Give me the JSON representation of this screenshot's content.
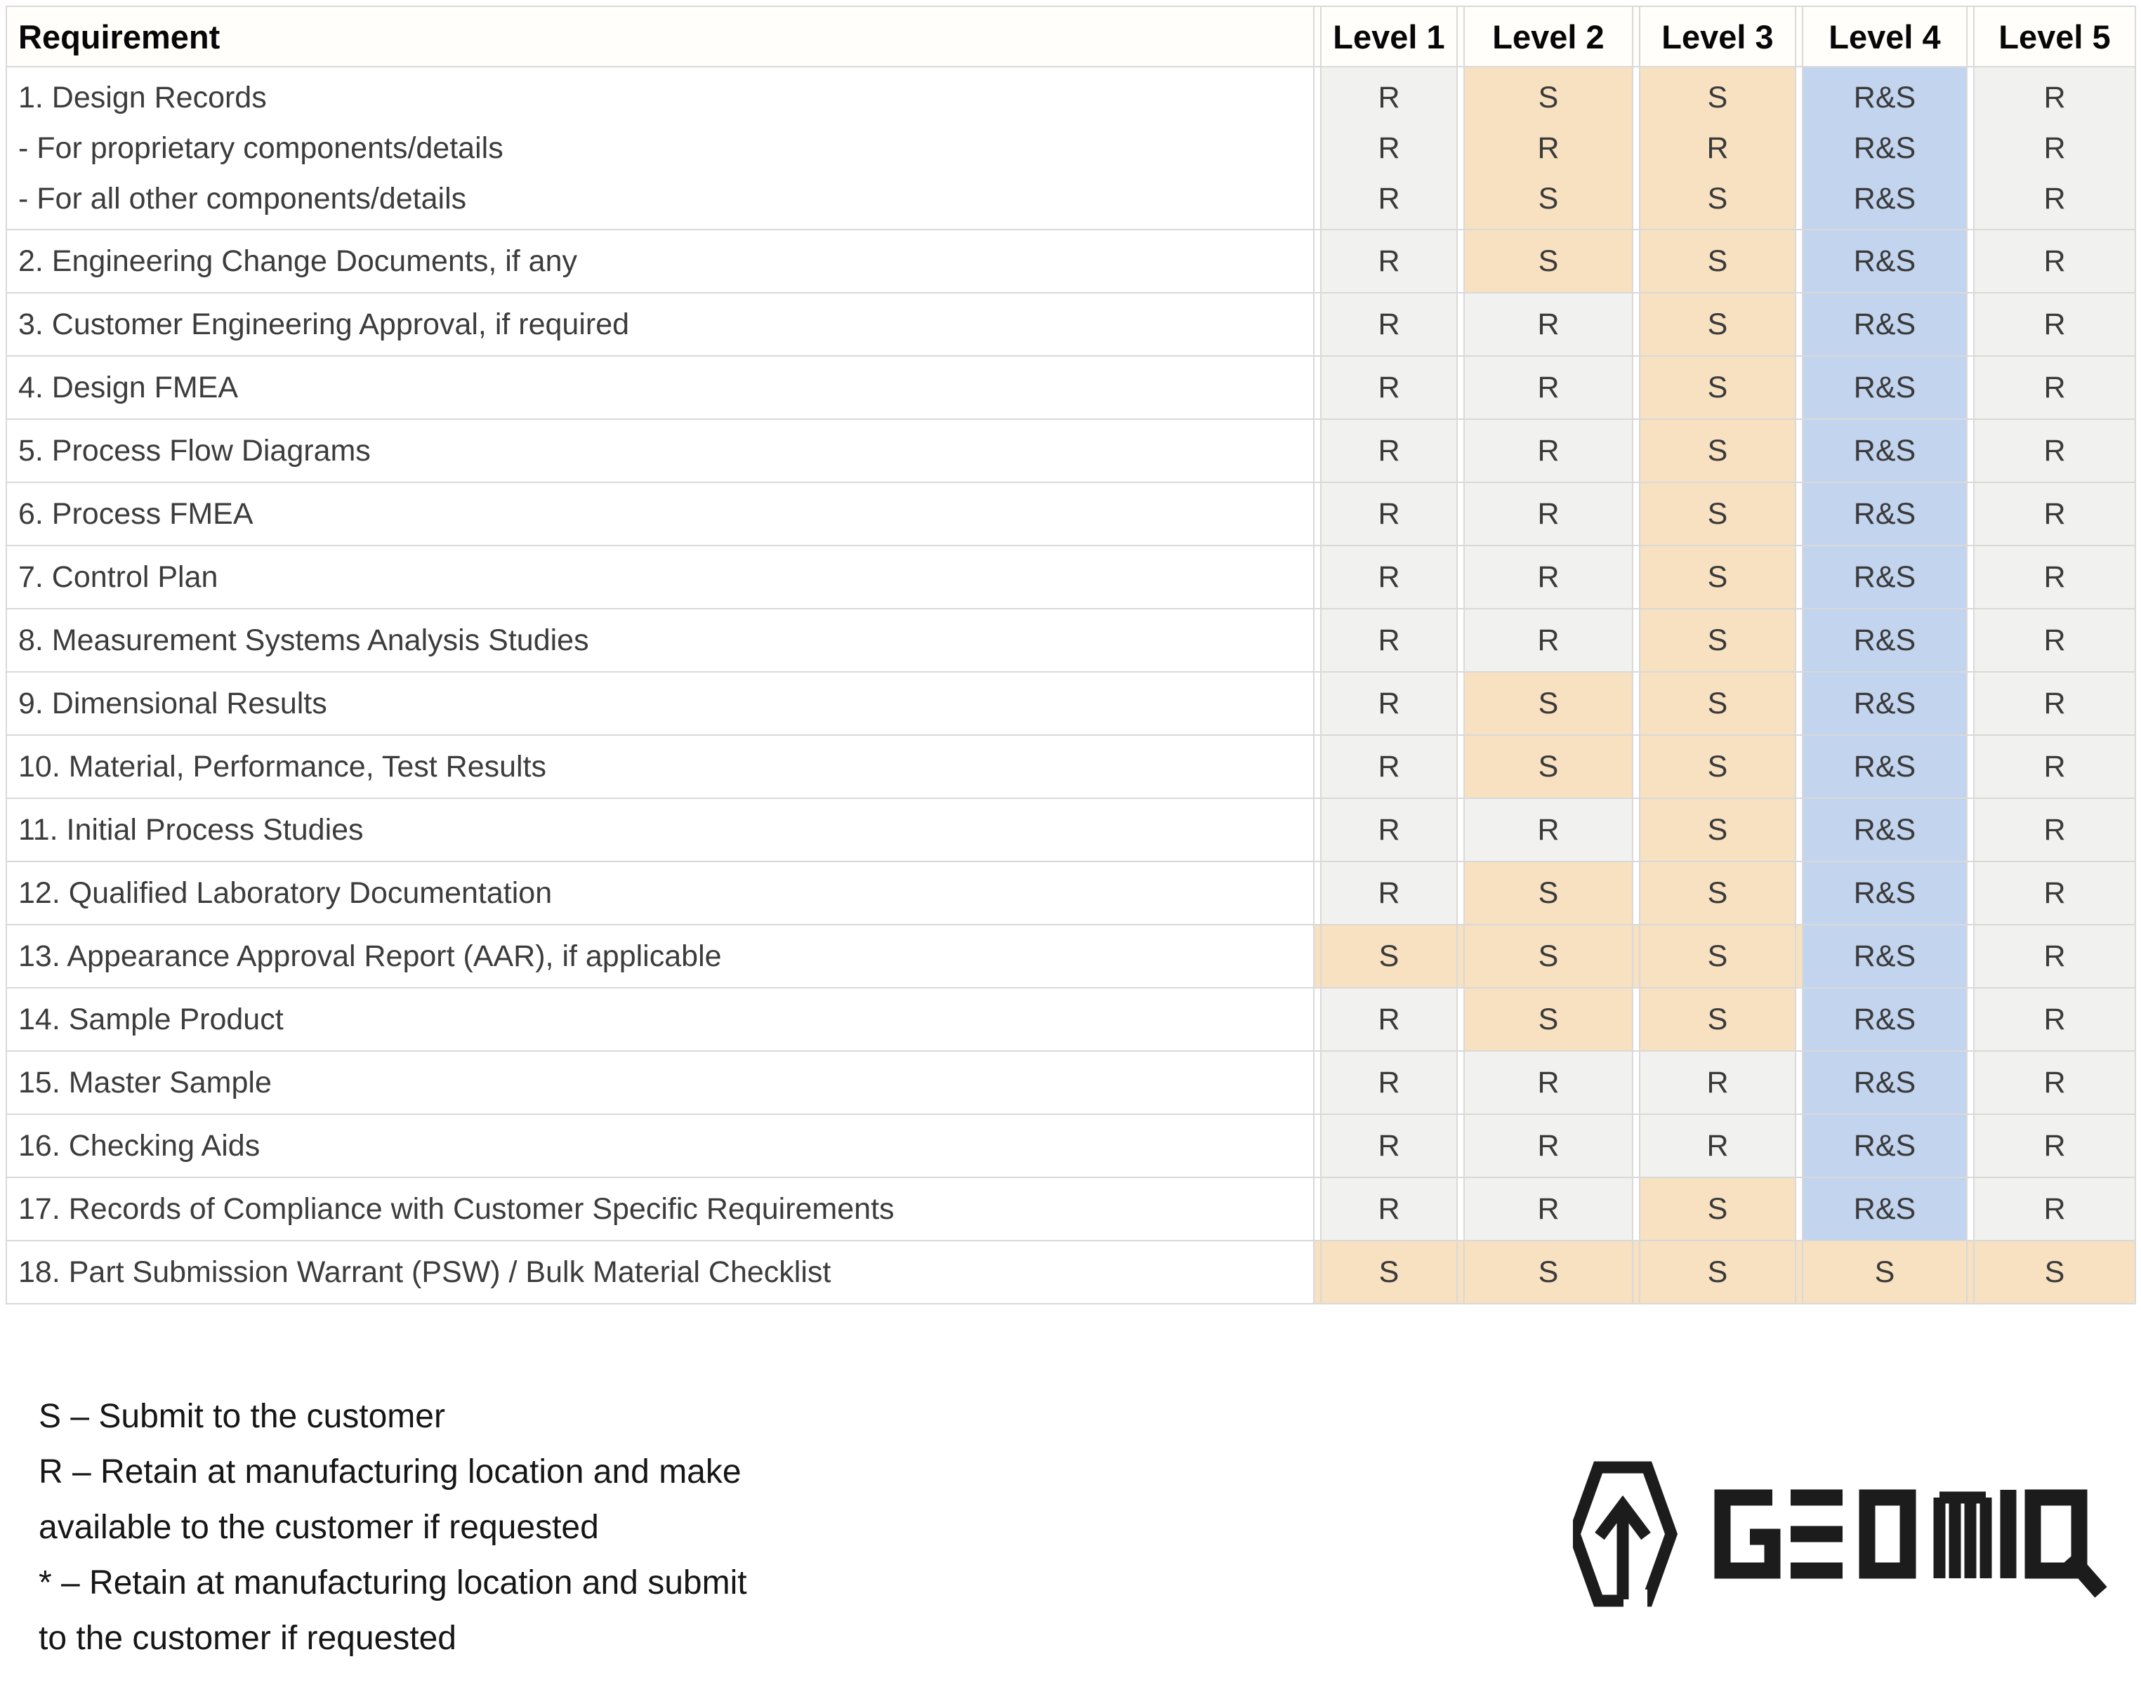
{
  "header": {
    "requirement_label": "Requirement",
    "level_labels": [
      "Level 1",
      "Level 2",
      "Level 3",
      "Level 4",
      "Level 5"
    ]
  },
  "rows": [
    {
      "requirement": [
        "1. Design Records",
        "- For proprietary components/details",
        "- For all other components/details"
      ],
      "tall": true,
      "cells": [
        {
          "text": [
            "R",
            "R",
            "R"
          ],
          "bg": "gray"
        },
        {
          "text": [
            "S",
            "R",
            "S"
          ],
          "bg": "orange"
        },
        {
          "text": [
            "S",
            "R",
            "S"
          ],
          "bg": "orange"
        },
        {
          "text": [
            "R&S",
            "R&S",
            "R&S"
          ],
          "bg": "blue"
        },
        {
          "text": [
            "R",
            "R",
            "R"
          ],
          "bg": "gray"
        }
      ],
      "spacers": [
        "white",
        "white",
        "white",
        "white",
        "white"
      ]
    },
    {
      "requirement": [
        "2. Engineering Change Documents, if any"
      ],
      "cells": [
        {
          "text": [
            "R"
          ],
          "bg": "gray"
        },
        {
          "text": [
            "S"
          ],
          "bg": "orange"
        },
        {
          "text": [
            "S"
          ],
          "bg": "orange"
        },
        {
          "text": [
            "R&S"
          ],
          "bg": "blue"
        },
        {
          "text": [
            "R"
          ],
          "bg": "gray"
        }
      ],
      "spacers": [
        "white",
        "white",
        "white",
        "white",
        "white"
      ]
    },
    {
      "requirement": [
        "3. Customer Engineering Approval, if required"
      ],
      "cells": [
        {
          "text": [
            "R"
          ],
          "bg": "gray"
        },
        {
          "text": [
            "R"
          ],
          "bg": "gray"
        },
        {
          "text": [
            "S"
          ],
          "bg": "orange"
        },
        {
          "text": [
            "R&S"
          ],
          "bg": "blue"
        },
        {
          "text": [
            "R"
          ],
          "bg": "gray"
        }
      ],
      "spacers": [
        "white",
        "white",
        "white",
        "white",
        "white"
      ]
    },
    {
      "requirement": [
        "4. Design FMEA"
      ],
      "cells": [
        {
          "text": [
            "R"
          ],
          "bg": "gray"
        },
        {
          "text": [
            "R"
          ],
          "bg": "gray"
        },
        {
          "text": [
            "S"
          ],
          "bg": "orange"
        },
        {
          "text": [
            "R&S"
          ],
          "bg": "blue"
        },
        {
          "text": [
            "R"
          ],
          "bg": "gray"
        }
      ],
      "spacers": [
        "white",
        "white",
        "white",
        "white",
        "white"
      ]
    },
    {
      "requirement": [
        "5. Process Flow Diagrams"
      ],
      "cells": [
        {
          "text": [
            "R"
          ],
          "bg": "gray"
        },
        {
          "text": [
            "R"
          ],
          "bg": "gray"
        },
        {
          "text": [
            "S"
          ],
          "bg": "orange"
        },
        {
          "text": [
            "R&S"
          ],
          "bg": "blue"
        },
        {
          "text": [
            "R"
          ],
          "bg": "gray"
        }
      ],
      "spacers": [
        "white",
        "white",
        "white",
        "white",
        "white"
      ]
    },
    {
      "requirement": [
        "6. Process FMEA"
      ],
      "cells": [
        {
          "text": [
            "R"
          ],
          "bg": "gray"
        },
        {
          "text": [
            "R"
          ],
          "bg": "gray"
        },
        {
          "text": [
            "S"
          ],
          "bg": "orange"
        },
        {
          "text": [
            "R&S"
          ],
          "bg": "blue"
        },
        {
          "text": [
            "R"
          ],
          "bg": "gray"
        }
      ],
      "spacers": [
        "white",
        "white",
        "white",
        "white",
        "white"
      ]
    },
    {
      "requirement": [
        "7. Control Plan"
      ],
      "cells": [
        {
          "text": [
            "R"
          ],
          "bg": "gray"
        },
        {
          "text": [
            "R"
          ],
          "bg": "gray"
        },
        {
          "text": [
            "S"
          ],
          "bg": "orange"
        },
        {
          "text": [
            "R&S"
          ],
          "bg": "blue"
        },
        {
          "text": [
            "R"
          ],
          "bg": "gray"
        }
      ],
      "spacers": [
        "white",
        "white",
        "white",
        "white",
        "white"
      ]
    },
    {
      "requirement": [
        "8. Measurement Systems Analysis Studies"
      ],
      "cells": [
        {
          "text": [
            "R"
          ],
          "bg": "gray"
        },
        {
          "text": [
            "R"
          ],
          "bg": "gray"
        },
        {
          "text": [
            "S"
          ],
          "bg": "orange"
        },
        {
          "text": [
            "R&S"
          ],
          "bg": "blue"
        },
        {
          "text": [
            "R"
          ],
          "bg": "gray"
        }
      ],
      "spacers": [
        "white",
        "white",
        "white",
        "white",
        "white"
      ]
    },
    {
      "requirement": [
        "9. Dimensional Results"
      ],
      "cells": [
        {
          "text": [
            "R"
          ],
          "bg": "gray"
        },
        {
          "text": [
            "S"
          ],
          "bg": "orange"
        },
        {
          "text": [
            "S"
          ],
          "bg": "orange"
        },
        {
          "text": [
            "R&S"
          ],
          "bg": "blue"
        },
        {
          "text": [
            "R"
          ],
          "bg": "gray"
        }
      ],
      "spacers": [
        "white",
        "white",
        "white",
        "white",
        "white"
      ]
    },
    {
      "requirement": [
        "10. Material, Performance, Test Results"
      ],
      "cells": [
        {
          "text": [
            "R"
          ],
          "bg": "gray"
        },
        {
          "text": [
            "S"
          ],
          "bg": "orange"
        },
        {
          "text": [
            "S"
          ],
          "bg": "orange"
        },
        {
          "text": [
            "R&S"
          ],
          "bg": "blue"
        },
        {
          "text": [
            "R"
          ],
          "bg": "gray"
        }
      ],
      "spacers": [
        "white",
        "white",
        "white",
        "white",
        "white"
      ]
    },
    {
      "requirement": [
        "11. Initial Process Studies"
      ],
      "cells": [
        {
          "text": [
            "R"
          ],
          "bg": "gray"
        },
        {
          "text": [
            "R"
          ],
          "bg": "gray"
        },
        {
          "text": [
            "S"
          ],
          "bg": "orange"
        },
        {
          "text": [
            "R&S"
          ],
          "bg": "blue"
        },
        {
          "text": [
            "R"
          ],
          "bg": "gray"
        }
      ],
      "spacers": [
        "white",
        "white",
        "white",
        "white",
        "white"
      ]
    },
    {
      "requirement": [
        "12. Qualified Laboratory Documentation"
      ],
      "cells": [
        {
          "text": [
            "R"
          ],
          "bg": "gray"
        },
        {
          "text": [
            "S"
          ],
          "bg": "orange"
        },
        {
          "text": [
            "S"
          ],
          "bg": "orange"
        },
        {
          "text": [
            "R&S"
          ],
          "bg": "blue"
        },
        {
          "text": [
            "R"
          ],
          "bg": "gray"
        }
      ],
      "spacers": [
        "white",
        "white",
        "white",
        "white",
        "white"
      ]
    },
    {
      "requirement": [
        "13. Appearance Approval Report (AAR), if applicable"
      ],
      "cells": [
        {
          "text": [
            "S"
          ],
          "bg": "orange"
        },
        {
          "text": [
            "S"
          ],
          "bg": "orange"
        },
        {
          "text": [
            "S"
          ],
          "bg": "orange"
        },
        {
          "text": [
            "R&S"
          ],
          "bg": "blue"
        },
        {
          "text": [
            "R"
          ],
          "bg": "gray"
        }
      ],
      "spacers": [
        "orange",
        "orange",
        "orange",
        "orange",
        "white"
      ]
    },
    {
      "requirement": [
        "14. Sample Product"
      ],
      "cells": [
        {
          "text": [
            "R"
          ],
          "bg": "gray"
        },
        {
          "text": [
            "S"
          ],
          "bg": "orange"
        },
        {
          "text": [
            "S"
          ],
          "bg": "orange"
        },
        {
          "text": [
            "R&S"
          ],
          "bg": "blue"
        },
        {
          "text": [
            "R"
          ],
          "bg": "gray"
        }
      ],
      "spacers": [
        "white",
        "white",
        "white",
        "white",
        "white"
      ]
    },
    {
      "requirement": [
        "15. Master Sample"
      ],
      "cells": [
        {
          "text": [
            "R"
          ],
          "bg": "gray"
        },
        {
          "text": [
            "R"
          ],
          "bg": "gray"
        },
        {
          "text": [
            "R"
          ],
          "bg": "gray"
        },
        {
          "text": [
            "R&S"
          ],
          "bg": "blue"
        },
        {
          "text": [
            "R"
          ],
          "bg": "gray"
        }
      ],
      "spacers": [
        "white",
        "white",
        "white",
        "white",
        "white"
      ]
    },
    {
      "requirement": [
        "16. Checking Aids"
      ],
      "cells": [
        {
          "text": [
            "R"
          ],
          "bg": "gray"
        },
        {
          "text": [
            "R"
          ],
          "bg": "gray"
        },
        {
          "text": [
            "R"
          ],
          "bg": "gray"
        },
        {
          "text": [
            "R&S"
          ],
          "bg": "blue"
        },
        {
          "text": [
            "R"
          ],
          "bg": "gray"
        }
      ],
      "spacers": [
        "white",
        "white",
        "white",
        "white",
        "white"
      ]
    },
    {
      "requirement": [
        "17. Records of Compliance with Customer Specific Requirements"
      ],
      "cells": [
        {
          "text": [
            "R"
          ],
          "bg": "gray"
        },
        {
          "text": [
            "R"
          ],
          "bg": "gray"
        },
        {
          "text": [
            "S"
          ],
          "bg": "orange"
        },
        {
          "text": [
            "R&S"
          ],
          "bg": "blue"
        },
        {
          "text": [
            "R"
          ],
          "bg": "gray"
        }
      ],
      "spacers": [
        "white",
        "white",
        "white",
        "white",
        "white"
      ]
    },
    {
      "requirement": [
        "18. Part Submission Warrant (PSW) / Bulk Material Checklist"
      ],
      "cells": [
        {
          "text": [
            "S"
          ],
          "bg": "orange"
        },
        {
          "text": [
            "S"
          ],
          "bg": "orange"
        },
        {
          "text": [
            "S"
          ],
          "bg": "orange"
        },
        {
          "text": [
            "S"
          ],
          "bg": "orange"
        },
        {
          "text": [
            "S"
          ],
          "bg": "orange"
        }
      ],
      "spacers": [
        "orange",
        "orange",
        "orange",
        "orange",
        "orange"
      ]
    }
  ],
  "legend": {
    "lines": [
      "S – Submit to the customer",
      "R – Retain at manufacturing location and make",
      "available to the customer if requested",
      "* – Retain at manufacturing location and submit",
      "to the customer if requested"
    ]
  },
  "logo": {
    "brand": "GEOMIQ",
    "icon": "hexagon-arrow-up-icon"
  },
  "colors": {
    "orange": "#f7e1c1",
    "blue": "#c3d4ef",
    "gray": "#f1f1ef",
    "white": "#ffffff",
    "grid": "#d9d9d9",
    "cell_text": "#3a3a3a",
    "req_text": "#3c3c3c",
    "header_text": "#070707",
    "legend_text": "#161616",
    "logo": "#1c1c1c",
    "header_bg": "#fffefa"
  }
}
